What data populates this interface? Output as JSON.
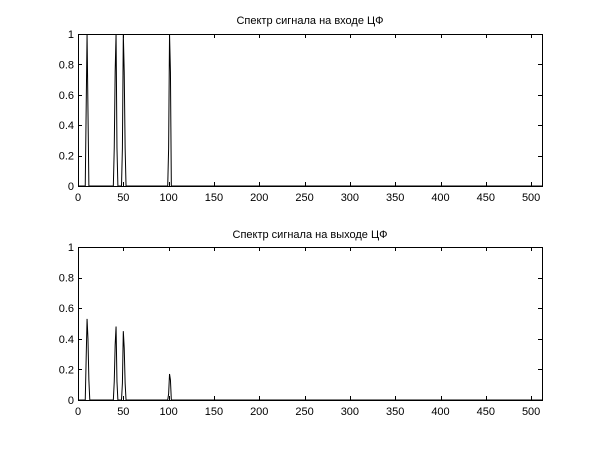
{
  "chart_data": [
    {
      "type": "line",
      "title": "Спектр сигнала на входе ЦФ",
      "xlabel": "",
      "ylabel": "",
      "xlim": [
        0,
        512
      ],
      "ylim": [
        0,
        1
      ],
      "grid": false,
      "xticks": [
        0,
        50,
        100,
        150,
        200,
        250,
        300,
        350,
        400,
        450,
        500
      ],
      "yticks": [
        0,
        0.2,
        0.4,
        0.6,
        0.8,
        1
      ],
      "xtick_labels": [
        "0",
        "50",
        "100",
        "150",
        "200",
        "250",
        "300",
        "350",
        "400",
        "450",
        "500"
      ],
      "ytick_labels": [
        "0",
        "0.2",
        "0.4",
        "0.6",
        "0.8",
        "1"
      ],
      "series": [
        {
          "color": "#000000",
          "x": [
            0,
            8,
            9,
            10,
            11,
            12,
            13,
            39,
            40,
            41,
            42,
            43,
            44,
            48,
            49,
            50,
            51,
            52,
            53,
            99,
            100,
            101,
            102,
            103,
            512
          ],
          "y": [
            0,
            0,
            0.5,
            1,
            0.5,
            0,
            0,
            0,
            0.25,
            0.75,
            1,
            0.25,
            0,
            0,
            0.25,
            1,
            0.75,
            0.25,
            0,
            0,
            0.25,
            1,
            0.75,
            0,
            0
          ]
        }
      ]
    },
    {
      "type": "line",
      "title": "Спектр сигнала на выходе ЦФ",
      "xlabel": "",
      "ylabel": "",
      "xlim": [
        0,
        512
      ],
      "ylim": [
        0,
        1
      ],
      "grid": false,
      "xticks": [
        0,
        50,
        100,
        150,
        200,
        250,
        300,
        350,
        400,
        450,
        500
      ],
      "yticks": [
        0,
        0.2,
        0.4,
        0.6,
        0.8,
        1
      ],
      "xtick_labels": [
        "0",
        "50",
        "100",
        "150",
        "200",
        "250",
        "300",
        "350",
        "400",
        "450",
        "500"
      ],
      "ytick_labels": [
        "0",
        "0.2",
        "0.4",
        "0.6",
        "0.8",
        "1"
      ],
      "series": [
        {
          "color": "#000000",
          "x": [
            0,
            8,
            9,
            10,
            11,
            12,
            13,
            39,
            40,
            41,
            42,
            43,
            44,
            48,
            49,
            50,
            51,
            52,
            53,
            99,
            100,
            101,
            102,
            103,
            512
          ],
          "y": [
            0,
            0,
            0.27,
            0.53,
            0.4,
            0.13,
            0,
            0,
            0.12,
            0.36,
            0.48,
            0.12,
            0,
            0,
            0.11,
            0.45,
            0.34,
            0.11,
            0,
            0,
            0.04,
            0.17,
            0.13,
            0,
            0
          ]
        }
      ]
    }
  ]
}
